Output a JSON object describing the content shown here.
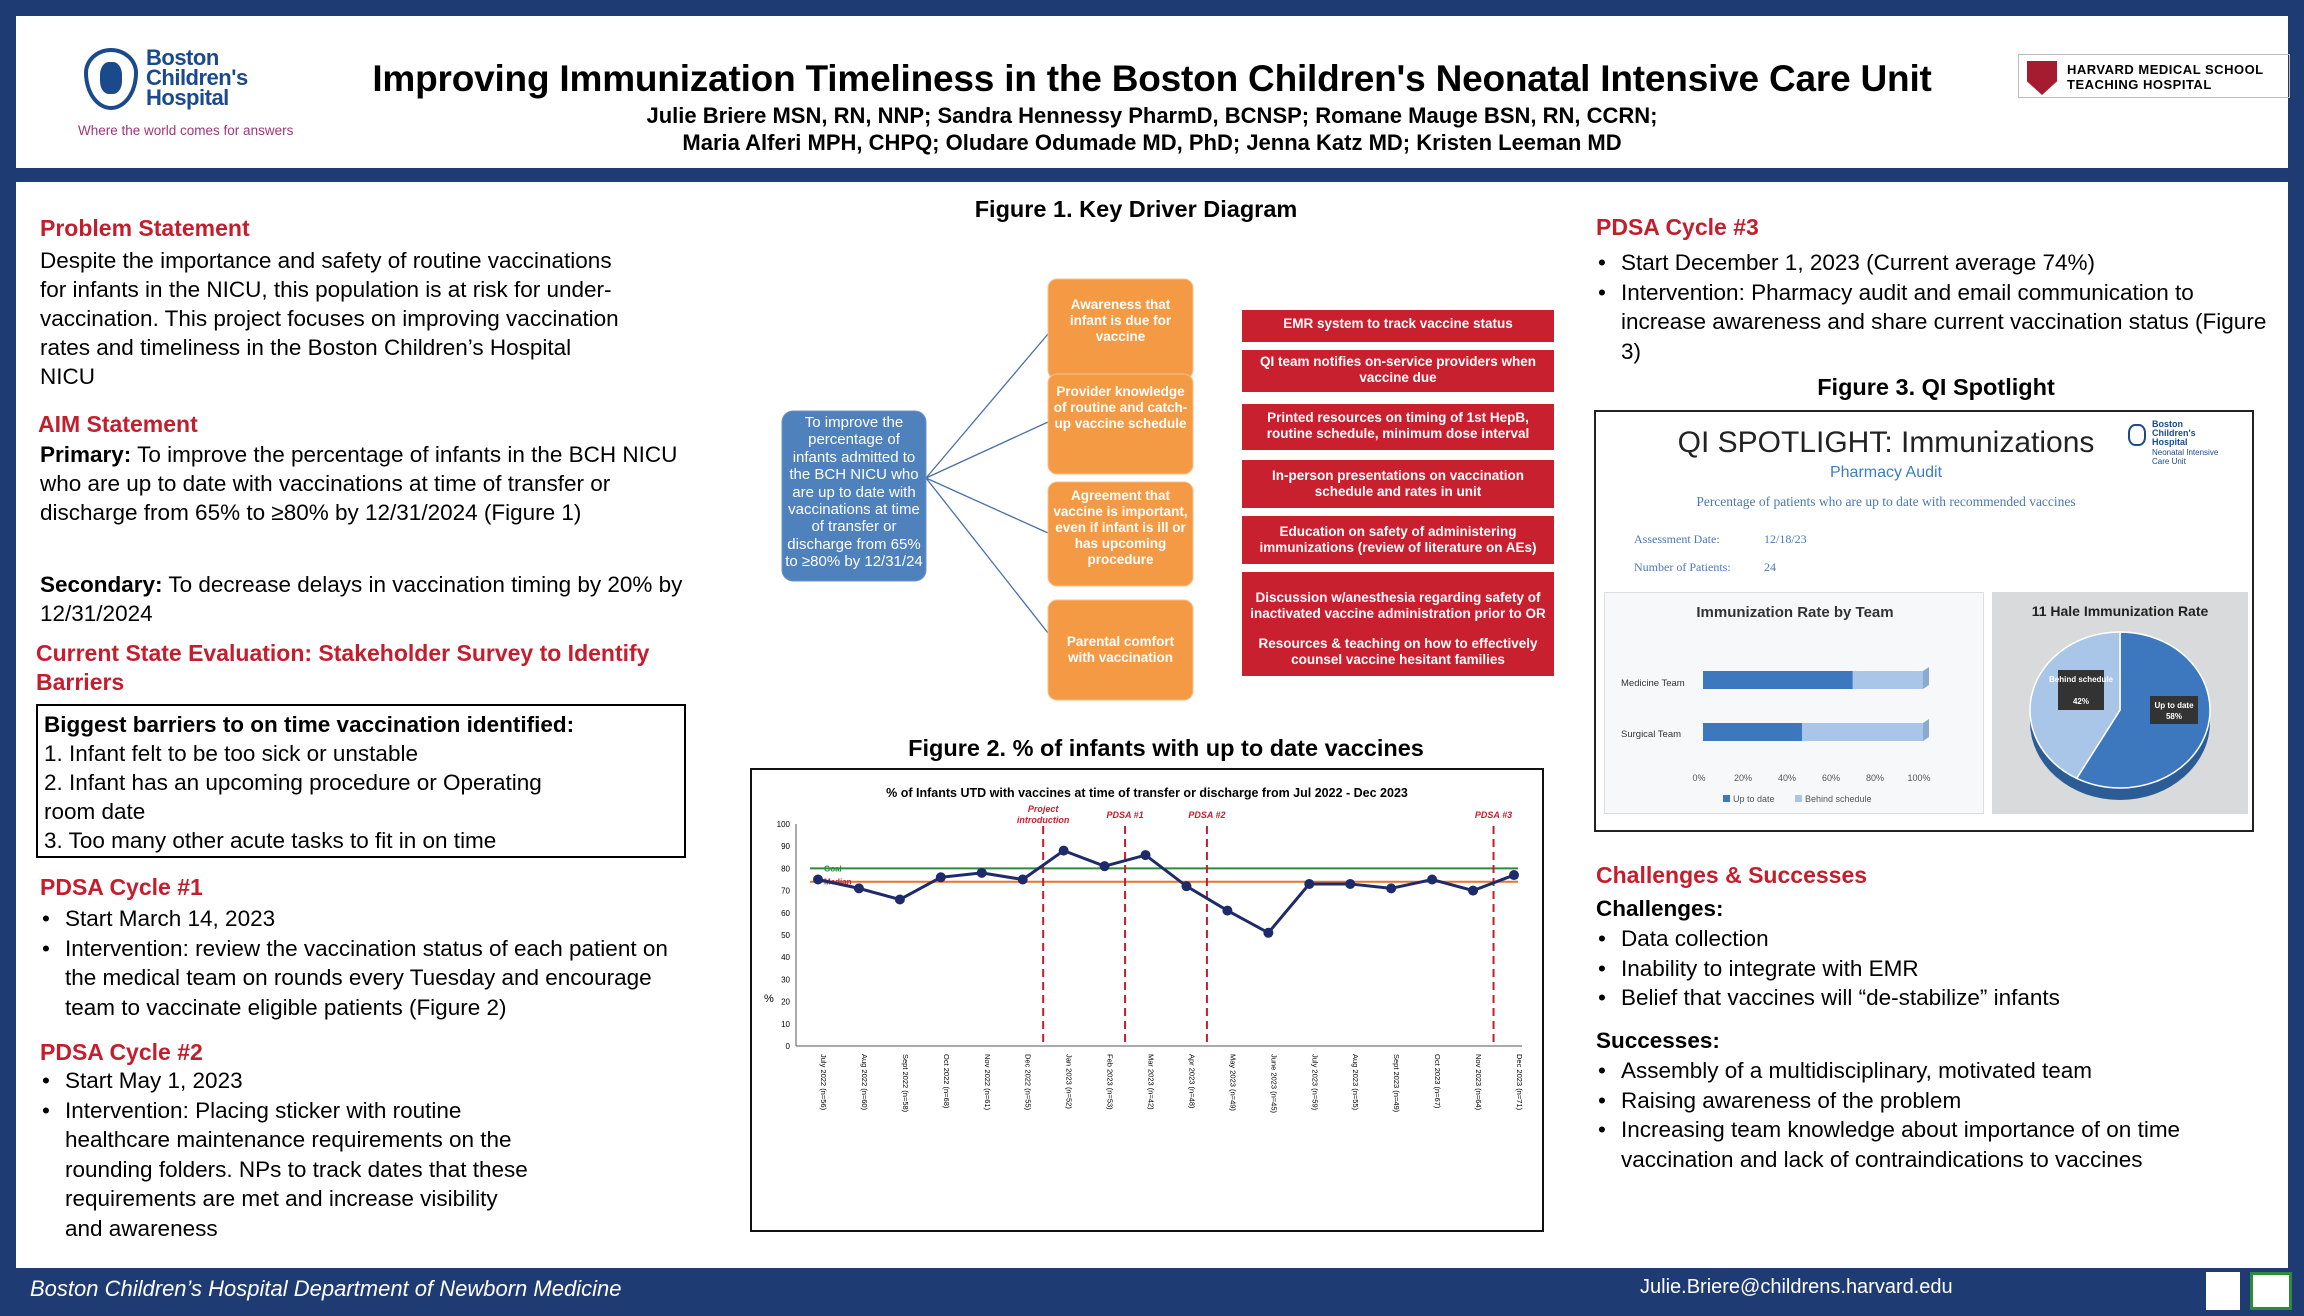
{
  "header": {
    "logo_name": "Boston Children's Hospital",
    "logo_line1": "Boston",
    "logo_line2": "Children's",
    "logo_line3": "Hospital",
    "logo_tagline": "Where the world comes for answers",
    "title": "Improving Immunization Timeliness in the Boston Children's Neonatal Intensive Care Unit",
    "authors_line1": "Julie Briere MSN, RN, NNP; Sandra Hennessy PharmD, BCNSP; Romane Mauge BSN, RN, CCRN;",
    "authors_line2": "Maria Alferi MPH, CHPQ; Oludare Odumade MD, PhD; Jenna Katz MD; Kristen Leeman MD",
    "harvard_line1": "HARVARD MEDICAL SCHOOL",
    "harvard_line2": "TEACHING HOSPITAL"
  },
  "left": {
    "problem_heading": "Problem Statement",
    "problem_text": "Despite the importance and safety of routine vaccinations for infants in the NICU, this population is at risk for under-vaccination. This project focuses on improving vaccination rates and timeliness in the Boston Children’s Hospital NICU",
    "aim_heading": "AIM Statement",
    "aim_primary_label": "Primary:",
    "aim_primary_text": " To improve the percentage of infants in the BCH NICU who are up to date with vaccinations at time of transfer or discharge from 65% to ≥80% by 12/31/2024 (Figure 1)",
    "aim_secondary_label": "Secondary:",
    "aim_secondary_text": " To decrease delays in vaccination timing by 20% by 12/31/2024",
    "current_heading": "Current State Evaluation: Stakeholder Survey to Identify Barriers",
    "barriers_title": "Biggest barriers to on time vaccination identified:",
    "barrier1": "1. Infant felt to be too sick or unstable",
    "barrier2a": "2. Infant has an upcoming procedure or Operating",
    "barrier2b": "room date",
    "barrier3": "3. Too many other acute tasks to fit in on time",
    "pdsa1_heading": "PDSA Cycle #1",
    "pdsa1_items": [
      "Start March 14, 2023",
      "Intervention: review the vaccination status of each patient on the medical team on rounds every Tuesday and encourage team to vaccinate eligible patients (Figure 2)"
    ],
    "pdsa2_heading": "PDSA Cycle #2",
    "pdsa2_items": [
      "Start May 1, 2023",
      "Intervention: Placing sticker with routine healthcare maintenance requirements on the rounding folders. NPs to track dates that these requirements are met and increase visibility and awareness"
    ]
  },
  "middle": {
    "fig1_title": "Figure 1. Key Driver Diagram",
    "aim_box": "To improve the percentage of infants admitted to the BCH NICU who are up to date with vaccinations at time of transfer or discharge from 65% to ≥80% by 12/31/24",
    "drivers": [
      {
        "text": "Awareness that infant is due for vaccine",
        "interventions": [
          "EMR system to track vaccine status",
          "QI team notifies on-service providers when vaccine due"
        ]
      },
      {
        "text": "Provider knowledge of routine and catch-up vaccine schedule",
        "interventions": [
          "Printed resources on timing of 1st HepB, routine schedule, minimum dose interval",
          "In-person presentations on vaccination schedule and rates in unit"
        ]
      },
      {
        "text": "Agreement that vaccine is important, even if infant is ill or has upcoming procedure",
        "interventions": [
          "Education on safety of administering immunizations (review of literature on AEs)",
          "Discussion w/anesthesia regarding safety of inactivated vaccine administration prior to OR"
        ]
      },
      {
        "text": "Parental comfort with vaccination",
        "interventions": [
          "Resources & teaching on how to effectively counsel vaccine hesitant families"
        ]
      }
    ],
    "fig2_title": "Figure 2. % of infants with up to date vaccines"
  },
  "chart_data": {
    "type": "line",
    "title": "% of Infants UTD with vaccines at time of transfer or discharge from Jul 2022 - Dec 2023",
    "ylabel": "%",
    "ylim": [
      0,
      100
    ],
    "yticks": [
      0,
      10,
      20,
      30,
      40,
      50,
      60,
      70,
      80,
      90,
      100
    ],
    "categories": [
      "July 2022 (n=56)",
      "Aug 2022 (n=60)",
      "Sept 2022 (n=58)",
      "Oct 2022 (n=68)",
      "Nov 2022 (n=61)",
      "Dec 2022 (n=55)",
      "Jan 2023 (n=52)",
      "Feb 2023 (n=53)",
      "Mar 2023 (n=42)",
      "Apr 2023 (n=48)",
      "May 2023 (n=49)",
      "June 2023 (n=45)",
      "July 2023 (n=59)",
      "Aug 2023 (n=55)",
      "Sept 2023 (n=49)",
      "Oct 2023 (n=67)",
      "Nov 2023 (n=64)",
      "Dec 2023 (n=71)"
    ],
    "values": [
      75,
      71,
      66,
      76,
      78,
      75,
      88,
      81,
      86,
      72,
      61,
      51,
      73,
      73,
      71,
      75,
      70,
      77
    ],
    "goal": {
      "label": "Goal",
      "value": 80,
      "color": "#2e8b3a"
    },
    "median": {
      "label": "Median",
      "value": 74,
      "color": "#e8742a"
    },
    "annotations": [
      {
        "label": "Project introduction",
        "at": 5.5
      },
      {
        "label": "PDSA #1",
        "at": 7.5
      },
      {
        "label": "PDSA #2",
        "at": 9.5
      },
      {
        "label": "PDSA #3",
        "at": 16.5
      }
    ],
    "line_color": "#1f2a6b"
  },
  "right": {
    "pdsa3_heading": "PDSA Cycle #3",
    "pdsa3_items": [
      "Start December 1, 2023 (Current average 74%)",
      "Intervention: Pharmacy audit and email communication to increase awareness and share current vaccination status (Figure 3)"
    ],
    "fig3_title": "Figure 3. QI Spotlight",
    "qi_title": "QI SPOTLIGHT: Immunizations",
    "qi_subtitle": "Pharmacy Audit",
    "qi_desc": "Percentage of patients who are up to date with recommended vaccines",
    "qi_logo_line1": "Boston",
    "qi_logo_line2": "Children's",
    "qi_logo_line3": "Hospital",
    "qi_logo_sub1": "Neonatal Intensive",
    "qi_logo_sub2": "Care Unit",
    "qi_date_label": "Assessment Date:",
    "qi_date": "12/18/23",
    "qi_patients_label": "Number of Patients:",
    "qi_patients": "24",
    "team_chart": {
      "title": "Immunization Rate by Team",
      "teams": [
        {
          "name": "Medicine Team",
          "up_to_date": 0.68
        },
        {
          "name": "Surgical Team",
          "up_to_date": 0.45
        }
      ],
      "ticks": [
        "0%",
        "20%",
        "40%",
        "60%",
        "80%",
        "100%"
      ],
      "legend_up": "Up to date",
      "legend_behind": "Behind schedule"
    },
    "hale_chart": {
      "title": "11 Hale Immunization Rate",
      "behind_label": "Behind schedule",
      "behind_pct": "42%",
      "behind": 0.42,
      "up_label": "Up to date",
      "up_pct": "58%",
      "up": 0.58
    },
    "cs_heading": "Challenges & Successes",
    "challenges_label": "Challenges:",
    "challenges": [
      "Data collection",
      "Inability to integrate with EMR",
      "Belief that vaccines will “de-stabilize” infants"
    ],
    "successes_label": "Successes:",
    "successes": [
      "Assembly of a multidisciplinary, motivated team",
      "Raising awareness of the problem",
      "Increasing team knowledge about importance of on time vaccination and lack of contraindications to vaccines"
    ]
  },
  "footer": {
    "left": "Boston Children’s Hospital Department of Newborn Medicine",
    "right": "Julie.Briere@childrens.harvard.edu"
  },
  "colors": {
    "navy": "#1f3b73",
    "red": "#c41e2e",
    "orange": "#f59a44",
    "blue_box": "#4f81bd",
    "intervention_red": "#c8202e"
  }
}
